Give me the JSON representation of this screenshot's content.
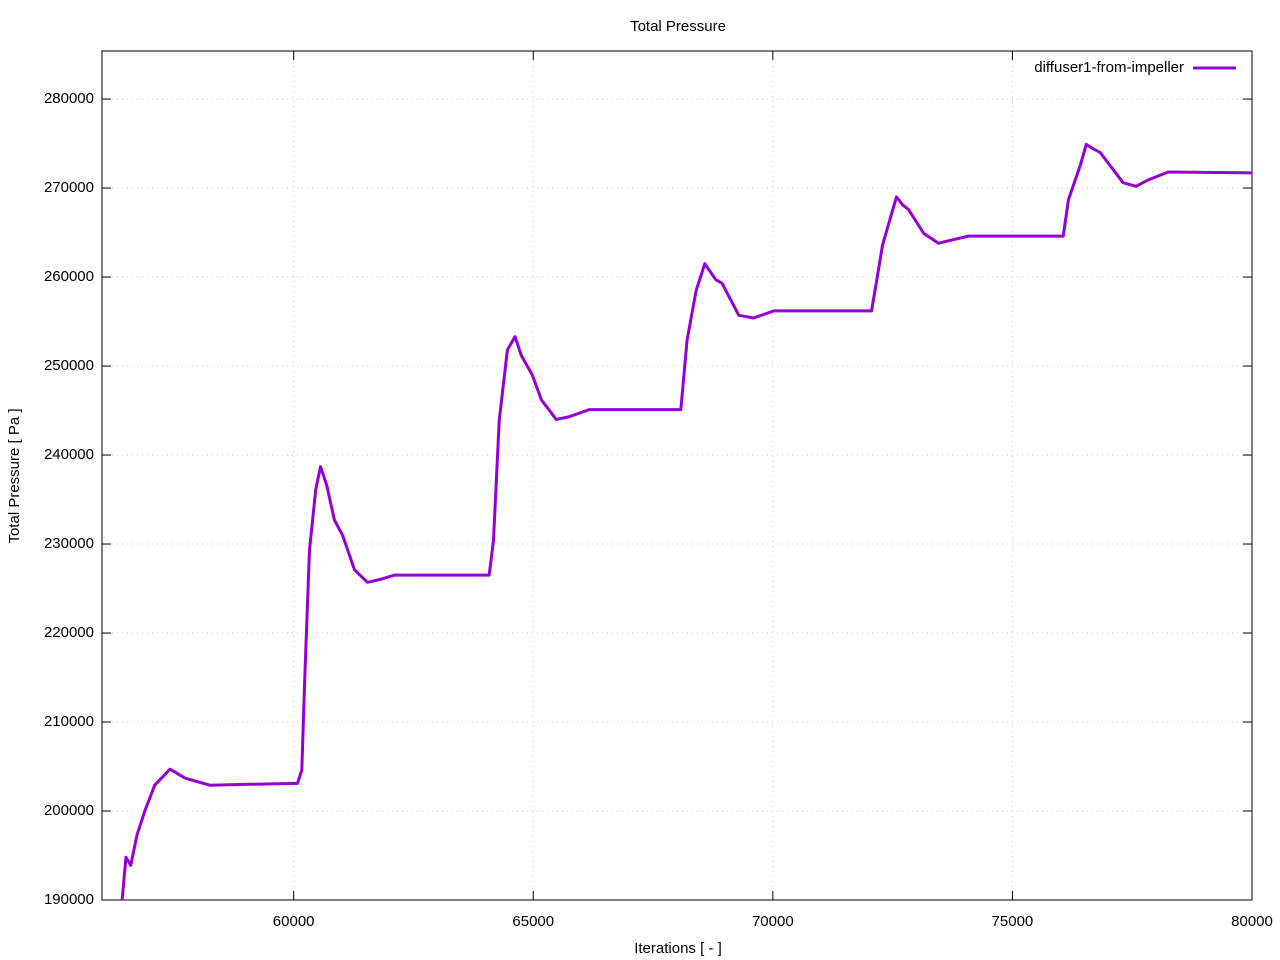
{
  "chart_data": {
    "type": "line",
    "title": "Total Pressure",
    "x_label": "Iterations [ - ]",
    "y_label": "Total Pressure [ Pa ]",
    "x": [
      56420,
      56500,
      56600,
      56730,
      56900,
      57100,
      57420,
      57730,
      58250,
      59080,
      60080,
      60170,
      60230,
      60330,
      60460,
      60560,
      60690,
      60850,
      61020,
      61270,
      61540,
      61790,
      62100,
      64080,
      64170,
      64290,
      64460,
      64620,
      64750,
      64980,
      65170,
      65480,
      65750,
      66170,
      68080,
      68210,
      68400,
      68580,
      68810,
      68940,
      69290,
      69600,
      70020,
      72060,
      72170,
      72290,
      72580,
      72710,
      72830,
      73150,
      73460,
      74080,
      76060,
      76170,
      76420,
      76540,
      76690,
      76830,
      77310,
      77580,
      77830,
      78250,
      80000
    ],
    "series": [
      {
        "name": "diffuser1-from-impeller",
        "color": "#9400d3",
        "values": [
          190000,
          194800,
          193900,
          197300,
          200100,
          202900,
          204700,
          203700,
          202900,
          203000,
          203100,
          204600,
          214700,
          229300,
          236100,
          238700,
          236600,
          232700,
          231000,
          227100,
          225700,
          226000,
          226500,
          226500,
          230400,
          243900,
          251800,
          253300,
          251200,
          249000,
          246200,
          244000,
          244300,
          245100,
          245100,
          252900,
          258500,
          261500,
          259700,
          259300,
          255700,
          255400,
          256200,
          256200,
          259700,
          263600,
          269000,
          268100,
          267600,
          264900,
          263800,
          264600,
          264600,
          268700,
          272600,
          274900,
          274400,
          274000,
          270600,
          270200,
          270900,
          271800,
          271700
        ]
      }
    ],
    "xlim": [
      56000,
      80000
    ],
    "xticks": [
      60000,
      65000,
      70000,
      75000,
      80000
    ],
    "ylim": [
      190000,
      285400
    ],
    "yticks": [
      190000,
      200000,
      210000,
      220000,
      230000,
      240000,
      250000,
      260000,
      270000,
      280000
    ],
    "grid": true,
    "legend": "top-right"
  }
}
